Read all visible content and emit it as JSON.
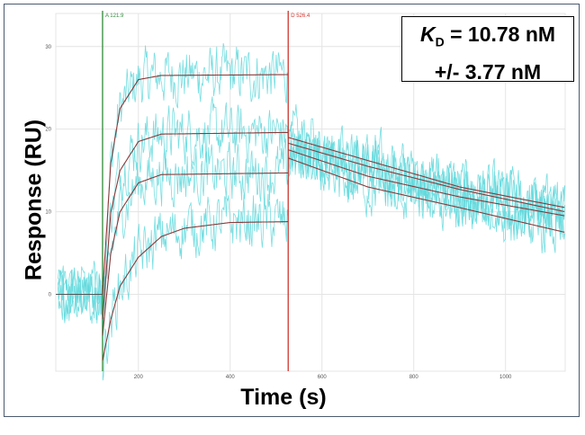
{
  "chart_data": {
    "type": "line",
    "xlabel": "Time (s)",
    "ylabel": "Response (RU)",
    "xlim": [
      20,
      1130
    ],
    "ylim": [
      -9.3,
      34
    ],
    "x_ticks": [
      200,
      400,
      600,
      800,
      1000
    ],
    "y_ticks": [
      0,
      10,
      20,
      30
    ],
    "grid": true,
    "markers": [
      {
        "label": "A 121.9",
        "x": 121.9,
        "color": "#2e8b3a"
      },
      {
        "label": "D 526.4",
        "x": 526.4,
        "color": "#d0342c"
      }
    ],
    "colors": {
      "data": "#5fd8dc",
      "fit": "#8b3a3a",
      "baseline_fit": "#555555"
    },
    "baseline": {
      "x": [
        20,
        121.9
      ],
      "y": [
        0,
        0
      ]
    },
    "fit_curves": [
      {
        "x": [
          121.9,
          140,
          160,
          200,
          250,
          526.4,
          526.4,
          700,
          900,
          1130
        ],
        "y": [
          0,
          16,
          22.5,
          26,
          26.5,
          26.6,
          19,
          16.2,
          13,
          10.5
        ]
      },
      {
        "x": [
          121.9,
          140,
          160,
          200,
          250,
          526.4,
          526.4,
          700,
          900,
          1130
        ],
        "y": [
          -3,
          10,
          15,
          18.5,
          19.4,
          19.6,
          18.3,
          15.5,
          12.7,
          10
        ]
      },
      {
        "x": [
          121.9,
          140,
          160,
          200,
          250,
          526.4,
          526.4,
          700,
          900,
          1130
        ],
        "y": [
          -5,
          5,
          10,
          13.5,
          14.5,
          14.7,
          17.5,
          14.3,
          11.8,
          9.5
        ]
      },
      {
        "x": [
          121.9,
          140,
          160,
          200,
          250,
          300,
          400,
          526.4,
          526.4,
          700,
          900,
          1130
        ],
        "y": [
          -8,
          -3,
          1,
          4.5,
          7,
          8,
          8.7,
          8.8,
          16.5,
          13,
          10.5,
          7.5
        ]
      }
    ],
    "annotation": {
      "line1_k": "K",
      "line1_sub": "D",
      "line1_rest": " = 10.78 nM",
      "line2": "+/- 3.77 nM"
    }
  }
}
